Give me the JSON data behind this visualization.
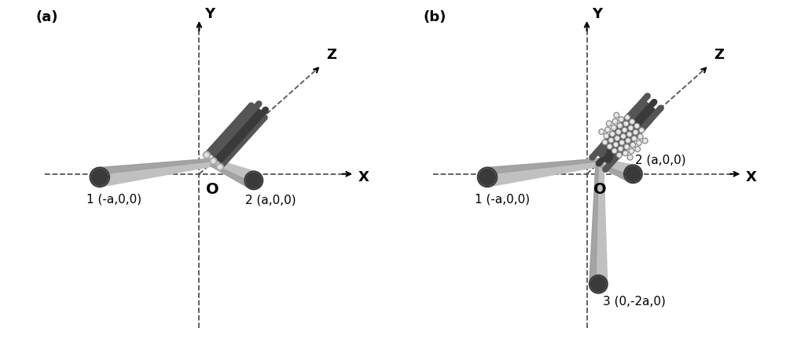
{
  "bg_color": "#ffffff",
  "panel_a_label": "(a)",
  "panel_b_label": "(b)",
  "dashed_color": "#555555",
  "label_O": "O",
  "label_X": "X",
  "label_Y": "Y",
  "label_Z": "Z",
  "label_1a": "1 (-a,0,0)",
  "label_2a_panel_a": "2 (a,0,0)",
  "label_1b": "1 (-a,0,0)",
  "label_2b": "2 (a,0,0)",
  "label_3b": "3 (0,-2a,0)",
  "rod_dark_color": "#555555",
  "rod_light_color": "#c0c0c0",
  "rod_darker_color": "#3a3a3a",
  "rod_mid_color": "#999999",
  "hole_fill_color": "#e8e8e8",
  "hole_edge_color": "#888888",
  "font_size_label": 11,
  "font_size_axis": 13,
  "font_size_panel": 13
}
